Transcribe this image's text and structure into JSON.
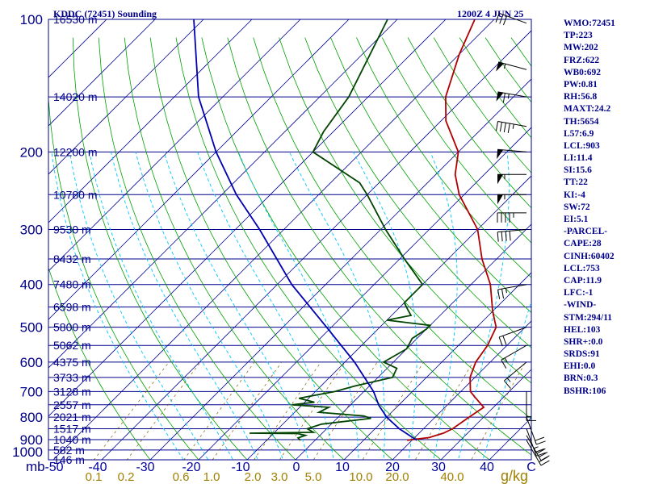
{
  "chart_data": {
    "type": "line",
    "title": "KDDC (72451) Sounding",
    "time_label": "1200Z  4 JUN 25",
    "pressure_axis": {
      "unit": "mb",
      "scale": "log",
      "range": [
        1000,
        100
      ],
      "ticks": [
        100,
        200,
        300,
        400,
        500,
        600,
        700,
        800,
        900,
        1000
      ]
    },
    "temperature_axis": {
      "unit": "C",
      "range": [
        -50,
        50
      ],
      "skew": true,
      "ticks": [
        "-50",
        "-40",
        "-30",
        "-20",
        "-10",
        "0",
        "10",
        "20",
        "30",
        "40",
        "C"
      ]
    },
    "mixing_ratio_labels": {
      "unit": "g/kg",
      "values": [
        "0.1",
        "0.2",
        "0.6",
        "1.0",
        "2.0",
        "3.0",
        "5.0",
        "10.0",
        "20.0",
        "40.0"
      ]
    },
    "height_labels": [
      {
        "p": 100,
        "text": "16530 m"
      },
      {
        "p": 150,
        "text": "14020 m"
      },
      {
        "p": 200,
        "text": "12200 m"
      },
      {
        "p": 250,
        "text": "10780 m"
      },
      {
        "p": 300,
        "text": "9530 m"
      },
      {
        "p": 350,
        "text": "8432 m"
      },
      {
        "p": 400,
        "text": "7480 m"
      },
      {
        "p": 450,
        "text": "6598 m"
      },
      {
        "p": 500,
        "text": "5800 m"
      },
      {
        "p": 550,
        "text": "5062 m"
      },
      {
        "p": 600,
        "text": "4375 m"
      },
      {
        "p": 650,
        "text": "3733 m"
      },
      {
        "p": 700,
        "text": "3128 m"
      },
      {
        "p": 750,
        "text": "2557 m"
      },
      {
        "p": 800,
        "text": "2021 m"
      },
      {
        "p": 850,
        "text": "1517 m"
      },
      {
        "p": 900,
        "text": "1040 m"
      },
      {
        "p": 950,
        "text": "582 m"
      },
      {
        "p": 1000,
        "text": "146 m"
      }
    ],
    "series": [
      {
        "kind": "temperature",
        "color": "#b00000",
        "points": [
          [
            903,
            19
          ],
          [
            890,
            23
          ],
          [
            870,
            25
          ],
          [
            850,
            26
          ],
          [
            800,
            27
          ],
          [
            760,
            28
          ],
          [
            720,
            24
          ],
          [
            700,
            22
          ],
          [
            650,
            19
          ],
          [
            600,
            17
          ],
          [
            550,
            16
          ],
          [
            500,
            14
          ],
          [
            460,
            10
          ],
          [
            400,
            4
          ],
          [
            350,
            -3
          ],
          [
            300,
            -10
          ],
          [
            250,
            -21
          ],
          [
            225,
            -26
          ],
          [
            200,
            -30
          ],
          [
            170,
            -39
          ],
          [
            150,
            -44
          ],
          [
            120,
            -50
          ],
          [
            100,
            -54
          ]
        ]
      },
      {
        "kind": "dewpoint",
        "color": "#004400",
        "points": [
          [
            903,
            -3
          ],
          [
            892,
            -4
          ],
          [
            880,
            -3
          ],
          [
            872,
            -5
          ],
          [
            870,
            -15
          ],
          [
            866,
            -2
          ],
          [
            850,
            -4
          ],
          [
            830,
            -2
          ],
          [
            805,
            7
          ],
          [
            795,
            5
          ],
          [
            780,
            -5
          ],
          [
            760,
            -4
          ],
          [
            750,
            -12
          ],
          [
            740,
            -8
          ],
          [
            725,
            -12
          ],
          [
            700,
            -6
          ],
          [
            680,
            -3
          ],
          [
            650,
            3
          ],
          [
            620,
            2
          ],
          [
            600,
            -2
          ],
          [
            560,
            0
          ],
          [
            530,
            -1
          ],
          [
            505,
            0
          ],
          [
            495,
            0
          ],
          [
            482,
            -10
          ],
          [
            470,
            -6
          ],
          [
            455,
            -8
          ],
          [
            440,
            -10
          ],
          [
            400,
            -10
          ],
          [
            350,
            -19
          ],
          [
            300,
            -29
          ],
          [
            250,
            -40
          ],
          [
            235,
            -44
          ],
          [
            200,
            -60
          ],
          [
            180,
            -62
          ],
          [
            150,
            -64
          ],
          [
            100,
            -72
          ]
        ]
      },
      {
        "kind": "parcel",
        "color": "#0000b0",
        "points": [
          [
            903,
            21
          ],
          [
            850,
            15
          ],
          [
            800,
            10
          ],
          [
            753,
            6
          ],
          [
            700,
            2
          ],
          [
            600,
            -8
          ],
          [
            500,
            -21
          ],
          [
            400,
            -37
          ],
          [
            300,
            -55
          ],
          [
            250,
            -67
          ],
          [
            200,
            -80
          ],
          [
            150,
            -95
          ],
          [
            100,
            -112
          ]
        ]
      }
    ],
    "wind_barbs": [
      {
        "p": 102,
        "dir": 290,
        "speed": 30
      },
      {
        "p": 130,
        "dir": 285,
        "speed": 55
      },
      {
        "p": 150,
        "dir": 280,
        "speed": 65
      },
      {
        "p": 175,
        "dir": 280,
        "speed": 45
      },
      {
        "p": 200,
        "dir": 275,
        "speed": 50
      },
      {
        "p": 225,
        "dir": 270,
        "speed": 55
      },
      {
        "p": 250,
        "dir": 270,
        "speed": 55
      },
      {
        "p": 275,
        "dir": 270,
        "speed": 45
      },
      {
        "p": 300,
        "dir": 265,
        "speed": 40
      },
      {
        "p": 400,
        "dir": 260,
        "speed": 25
      },
      {
        "p": 500,
        "dir": 250,
        "speed": 20
      },
      {
        "p": 550,
        "dir": 240,
        "speed": 15
      },
      {
        "p": 600,
        "dir": 230,
        "speed": 15
      },
      {
        "p": 700,
        "dir": 180,
        "speed": 15
      },
      {
        "p": 800,
        "dir": 160,
        "speed": 20
      },
      {
        "p": 850,
        "dir": 160,
        "speed": 25
      },
      {
        "p": 880,
        "dir": 150,
        "speed": 30
      },
      {
        "p": 903,
        "dir": 150,
        "speed": 20
      }
    ],
    "grid": true
  },
  "indices": [
    "WMO:72451",
    "TP:223",
    "MW:202",
    "FRZ:622",
    "WB0:692",
    "PW:0.81",
    "RH:56.8",
    "MAXT:24.2",
    "TH:5654",
    "L57:6.9",
    "LCL:903",
    "LI:11.4",
    "SI:15.6",
    "TT:22",
    "KI:-4",
    "SW:72",
    "EI:5.1",
    "-PARCEL-",
    "CAPE:28",
    "CINH:60402",
    "LCL:753",
    "CAP:11.9",
    "LFC:-1",
    "-WIND-",
    "STM:294/11",
    "HEL:103",
    "SHR+:0.0",
    "SRDS:91",
    "EHI:0.0",
    "BRN:0.3",
    "BSHR:106"
  ],
  "colors": {
    "pressure_lines": "#00008b",
    "dry_adiabats": "#00a000",
    "moist_adiabats": "#00c8ff",
    "temp_axis": "#0000a0",
    "mixing_labels": "#a08000",
    "text": "#00008b"
  }
}
